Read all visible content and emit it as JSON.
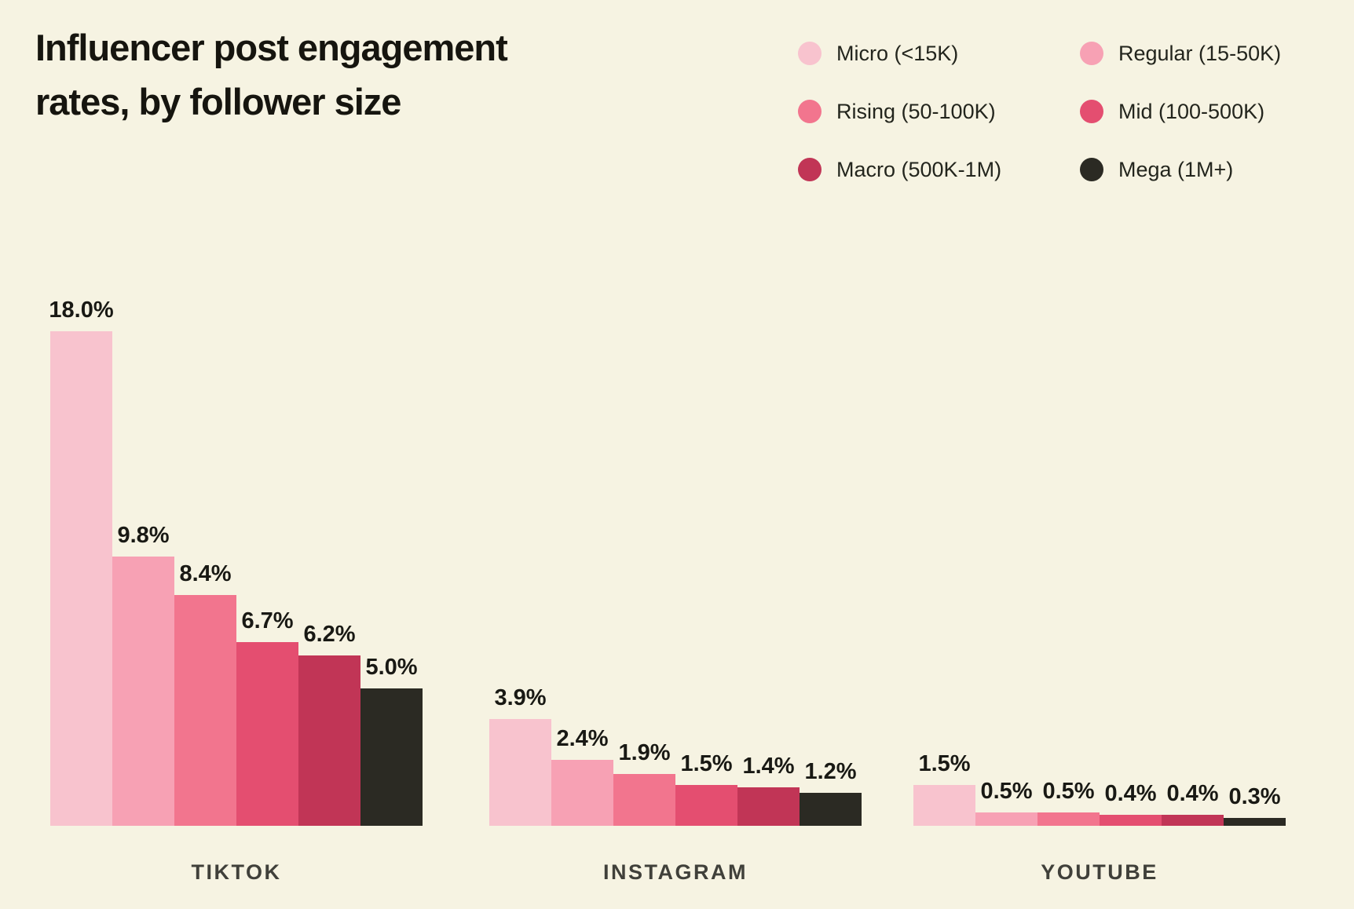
{
  "title": {
    "full": "Influencer post engagement rates, by follower size",
    "lines": [
      "Influencer post engagement",
      "rates, by follower size"
    ]
  },
  "colors": {
    "background": "#F6F3E2",
    "title_text": "#16150F",
    "value_label_text": "#191914",
    "category_label_text": "#40403A",
    "legend_text": "#23251D"
  },
  "chart_data": {
    "type": "bar",
    "title": "Influencer post engagement rates, by follower size",
    "categories": [
      "TIKTOK",
      "INSTAGRAM",
      "YOUTUBE"
    ],
    "series": [
      {
        "name": "Micro (<15K)",
        "color": "#F8C3CE",
        "values": [
          18.0,
          3.9,
          1.5
        ]
      },
      {
        "name": "Regular (15-50K)",
        "color": "#F7A1B4",
        "values": [
          9.8,
          2.4,
          0.5
        ]
      },
      {
        "name": "Rising (50-100K)",
        "color": "#F2758E",
        "values": [
          8.4,
          1.9,
          0.5
        ]
      },
      {
        "name": "Mid (100-500K)",
        "color": "#E44E70",
        "values": [
          6.7,
          1.5,
          0.4
        ]
      },
      {
        "name": "Macro (500K-1M)",
        "color": "#C13556",
        "values": [
          6.2,
          1.4,
          0.4
        ]
      },
      {
        "name": "Mega (1M+)",
        "color": "#2B2A23",
        "values": [
          5.0,
          1.2,
          0.3
        ]
      }
    ],
    "value_labels": [
      [
        "18.0%",
        "9.8%",
        "8.4%",
        "6.7%",
        "6.2%",
        "5.0%"
      ],
      [
        "3.9%",
        "2.4%",
        "1.9%",
        "1.5%",
        "1.4%",
        "1.2%"
      ],
      [
        "1.5%",
        "0.5%",
        "0.5%",
        "0.4%",
        "0.4%",
        "0.3%"
      ]
    ],
    "unit": "%",
    "ylim": [
      0,
      18
    ],
    "grid": false,
    "xlabel": "",
    "ylabel": "",
    "legend_position": "top-right"
  }
}
